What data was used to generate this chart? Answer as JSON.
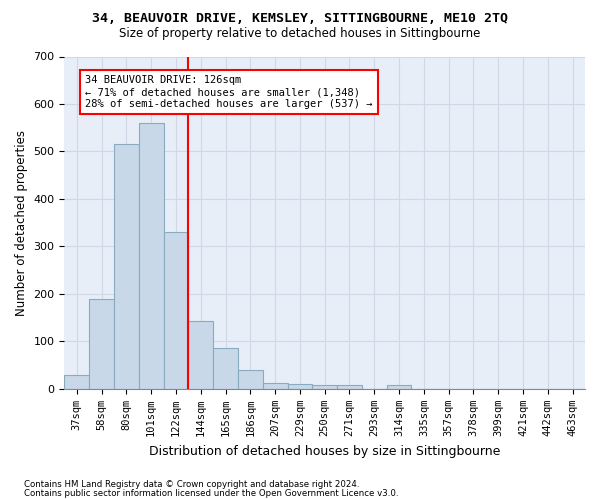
{
  "title_line1": "34, BEAUVOIR DRIVE, KEMSLEY, SITTINGBOURNE, ME10 2TQ",
  "title_line2": "Size of property relative to detached houses in Sittingbourne",
  "xlabel": "Distribution of detached houses by size in Sittingbourne",
  "ylabel": "Number of detached properties",
  "footnote1": "Contains HM Land Registry data © Crown copyright and database right 2024.",
  "footnote2": "Contains public sector information licensed under the Open Government Licence v3.0.",
  "bin_labels": [
    "37sqm",
    "58sqm",
    "80sqm",
    "101sqm",
    "122sqm",
    "144sqm",
    "165sqm",
    "186sqm",
    "207sqm",
    "229sqm",
    "250sqm",
    "271sqm",
    "293sqm",
    "314sqm",
    "335sqm",
    "357sqm",
    "378sqm",
    "399sqm",
    "421sqm",
    "442sqm",
    "463sqm"
  ],
  "bar_values": [
    30,
    190,
    515,
    560,
    330,
    143,
    87,
    40,
    13,
    10,
    8,
    8,
    0,
    8,
    0,
    0,
    0,
    0,
    0,
    0,
    0
  ],
  "bar_color": "#c8d8e8",
  "bar_edge_color": "#8aaabf",
  "grid_color": "#d0d8e8",
  "background_color": "#e8eef8",
  "red_line_x": 4.5,
  "annotation_line1": "34 BEAUVOIR DRIVE: 126sqm",
  "annotation_line2": "← 71% of detached houses are smaller (1,348)",
  "annotation_line3": "28% of semi-detached houses are larger (537) →",
  "ylim": [
    0,
    700
  ],
  "yticks": [
    0,
    100,
    200,
    300,
    400,
    500,
    600,
    700
  ]
}
